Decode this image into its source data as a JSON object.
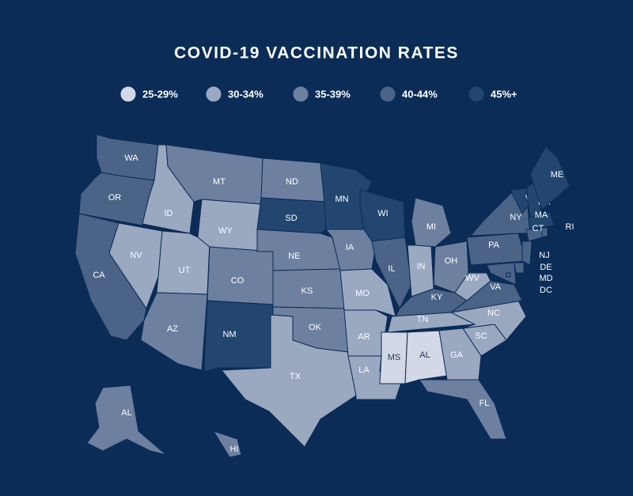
{
  "title": "COVID-19 VACCINATION RATES",
  "legend": [
    {
      "label": "25-29%",
      "color": "#d2d8e5"
    },
    {
      "label": "30-34%",
      "color": "#9aa8c0"
    },
    {
      "label": "35-39%",
      "color": "#6d809f"
    },
    {
      "label": "40-44%",
      "color": "#4b6387"
    },
    {
      "label": "45%+",
      "color": "#234670"
    }
  ],
  "states": [
    {
      "label": "WA",
      "bin": 3
    },
    {
      "label": "OR",
      "bin": 3
    },
    {
      "label": "CA",
      "bin": 3
    },
    {
      "label": "ID",
      "bin": 1
    },
    {
      "label": "NV",
      "bin": 1
    },
    {
      "label": "UT",
      "bin": 1
    },
    {
      "label": "AZ",
      "bin": 2
    },
    {
      "label": "MT",
      "bin": 2
    },
    {
      "label": "WY",
      "bin": 1
    },
    {
      "label": "CO",
      "bin": 2
    },
    {
      "label": "NM",
      "bin": 4
    },
    {
      "label": "ND",
      "bin": 2
    },
    {
      "label": "SD",
      "bin": 4
    },
    {
      "label": "NE",
      "bin": 2
    },
    {
      "label": "KS",
      "bin": 2
    },
    {
      "label": "OK",
      "bin": 2
    },
    {
      "label": "TX",
      "bin": 1
    },
    {
      "label": "MN",
      "bin": 4
    },
    {
      "label": "IA",
      "bin": 2
    },
    {
      "label": "MO",
      "bin": 1
    },
    {
      "label": "AR",
      "bin": 1
    },
    {
      "label": "LA",
      "bin": 1
    },
    {
      "label": "WI",
      "bin": 4
    },
    {
      "label": "IL",
      "bin": 3
    },
    {
      "label": "IN",
      "bin": 1
    },
    {
      "label": "MI",
      "bin": 2
    },
    {
      "label": "OH",
      "bin": 2
    },
    {
      "label": "KY",
      "bin": 3
    },
    {
      "label": "TN",
      "bin": 1
    },
    {
      "label": "MS",
      "bin": 0
    },
    {
      "label": "AL",
      "bin": 0
    },
    {
      "label": "GA",
      "bin": 1
    },
    {
      "label": "FL",
      "bin": 2
    },
    {
      "label": "SC",
      "bin": 1
    },
    {
      "label": "NC",
      "bin": 1
    },
    {
      "label": "VA",
      "bin": 3
    },
    {
      "label": "WV",
      "bin": 1
    },
    {
      "label": "PA",
      "bin": 3
    },
    {
      "label": "NY",
      "bin": 3
    },
    {
      "label": "VT",
      "bin": 4
    },
    {
      "label": "NH",
      "bin": 4
    },
    {
      "label": "ME",
      "bin": 4
    },
    {
      "label": "MA",
      "bin": 4
    },
    {
      "label": "CT",
      "bin": 3
    },
    {
      "label": "RI",
      "bin": 3
    },
    {
      "label": "NJ",
      "bin": 3
    },
    {
      "label": "DE",
      "bin": 3
    },
    {
      "label": "MD",
      "bin": 3
    },
    {
      "label": "DC",
      "bin": 3
    },
    {
      "label": "AL",
      "bin": 2
    },
    {
      "label": "HI",
      "bin": 2
    }
  ]
}
